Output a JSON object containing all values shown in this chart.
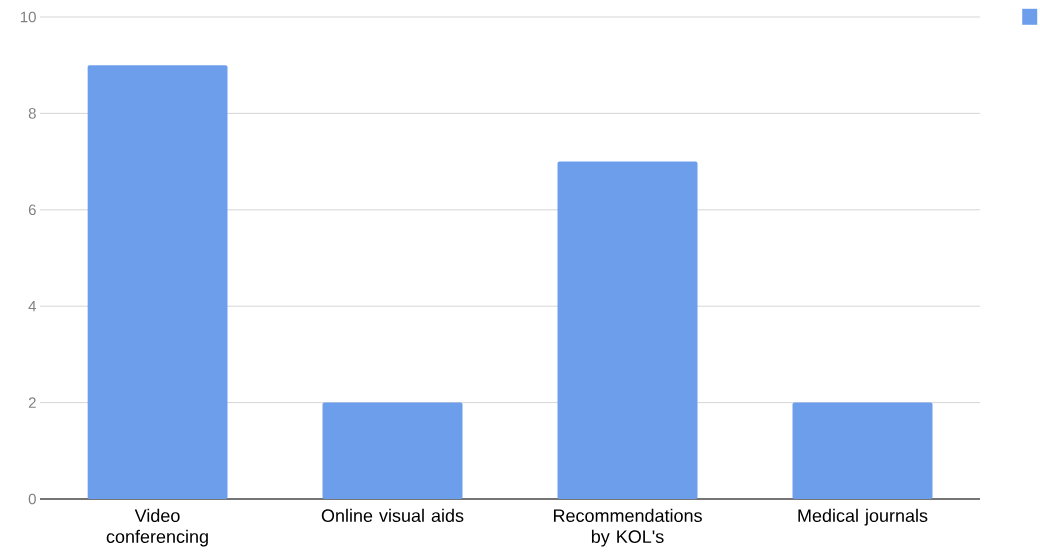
{
  "chart_data": {
    "type": "bar",
    "categories": [
      "Video conferencing",
      "Online visual aids",
      "Recommendations by KOL's",
      "Medical journals"
    ],
    "values": [
      9,
      2,
      7,
      2
    ],
    "color": "#6d9eeb",
    "ylim": [
      0,
      10
    ],
    "yticks": [
      0,
      2,
      4,
      6,
      8,
      10
    ],
    "grid": "y"
  }
}
